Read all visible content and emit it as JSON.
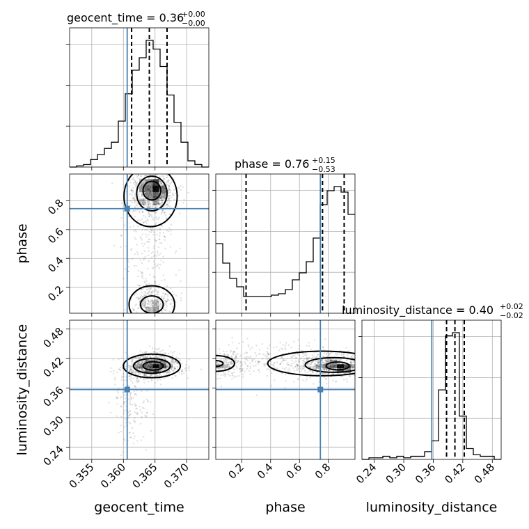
{
  "chart_data": {
    "type": "corner",
    "parameters": [
      "geocent_time",
      "phase",
      "luminosity_distance"
    ],
    "titles": [
      {
        "param": "geocent_time",
        "median": "0.36",
        "plus": "+0.00",
        "minus": "−0.00"
      },
      {
        "param": "phase",
        "median": "0.76",
        "plus": "+0.15",
        "minus": "−0.53"
      },
      {
        "param": "luminosity_distance",
        "median": "0.40",
        "plus": "+0.02",
        "minus": "−0.02"
      }
    ],
    "ranges": {
      "geocent_time": [
        0.3515,
        0.3735
      ],
      "phase": [
        0.02,
        0.985
      ],
      "luminosity_distance": [
        0.215,
        0.498
      ]
    },
    "truths": {
      "geocent_time": 0.3606,
      "phase": 0.745,
      "luminosity_distance": 0.357
    },
    "quantiles": {
      "geocent_time": [
        0.3613,
        0.3641,
        0.3669
      ],
      "phase": [
        0.23,
        0.76,
        0.91
      ],
      "luminosity_distance": [
        0.387,
        0.404,
        0.423
      ]
    },
    "tick_labels": {
      "geocent_time": [
        "0.355",
        "0.360",
        "0.365",
        "0.370"
      ],
      "phase": [
        "0.2",
        "0.4",
        "0.6",
        "0.8"
      ],
      "luminosity_distance": [
        "0.24",
        "0.30",
        "0.36",
        "0.42",
        "0.48"
      ]
    },
    "histograms": {
      "geocent_time": {
        "edges": [
          0.3515,
          0.3526,
          0.3537,
          0.3548,
          0.3559,
          0.357,
          0.3581,
          0.3592,
          0.3603,
          0.3614,
          0.3625,
          0.3636,
          0.3647,
          0.3658,
          0.3669,
          0.368,
          0.3691,
          0.3702,
          0.3713,
          0.3724,
          0.3735
        ],
        "counts": [
          0,
          1,
          2,
          6,
          10,
          15,
          20,
          37,
          59,
          78,
          88,
          102,
          95,
          81,
          58,
          36,
          20,
          5,
          2,
          0
        ]
      },
      "phase": {
        "edges": [
          0.02,
          0.0683,
          0.1165,
          0.1648,
          0.213,
          0.2613,
          0.3095,
          0.3578,
          0.406,
          0.4543,
          0.5025,
          0.5508,
          0.599,
          0.6473,
          0.6955,
          0.7438,
          0.792,
          0.8403,
          0.8885,
          0.9368,
          0.985
        ],
        "counts": [
          50,
          36,
          25,
          19,
          12,
          12,
          12,
          12,
          13,
          14,
          17,
          24,
          29,
          37,
          54,
          78,
          88,
          91,
          87,
          71
        ]
      },
      "luminosity_distance": {
        "edges": [
          0.215,
          0.2292,
          0.2433,
          0.2575,
          0.2716,
          0.2858,
          0.2999,
          0.3141,
          0.3282,
          0.3424,
          0.3565,
          0.3707,
          0.3848,
          0.399,
          0.4131,
          0.4273,
          0.4414,
          0.4556,
          0.4697,
          0.4839,
          0.498
        ],
        "counts": [
          0,
          1,
          1,
          2,
          1,
          2,
          1,
          2,
          2,
          5,
          12,
          45,
          80,
          82,
          28,
          7,
          3,
          2,
          2,
          0
        ]
      }
    },
    "posterior_peaks": [
      {
        "pair": [
          "geocent_time",
          "phase"
        ],
        "mode": [
          0.3646,
          0.88
        ],
        "secondary_mode": [
          0.3645,
          0.05
        ]
      },
      {
        "pair": [
          "geocent_time",
          "luminosity_distance"
        ],
        "mode": [
          0.3645,
          0.405
        ]
      },
      {
        "pair": [
          "phase",
          "luminosity_distance"
        ],
        "mode": [
          0.87,
          0.405
        ],
        "secondary_mode": [
          0.02,
          0.41
        ]
      }
    ],
    "truth_color": "#4682b4"
  }
}
